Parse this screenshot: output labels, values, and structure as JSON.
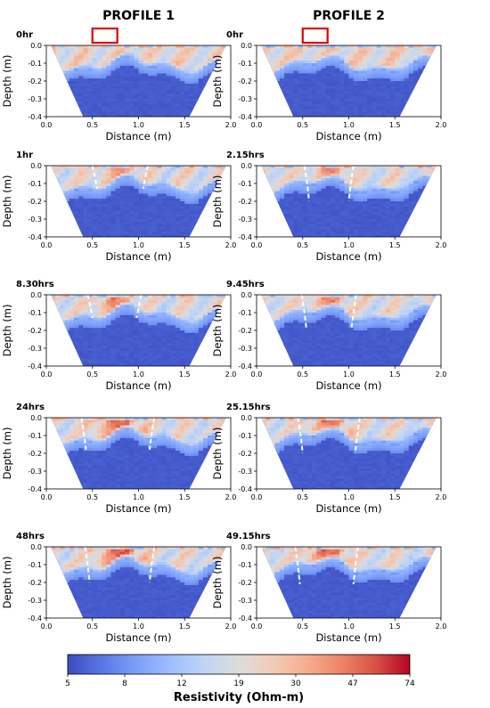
{
  "titles": [
    "PROFILE 1",
    "PROFILE 2"
  ],
  "panels": [
    [
      {
        "time": "0hr",
        "intensity": 0.1,
        "dashes": null,
        "marker": true
      },
      {
        "time": "1hr",
        "intensity": 0.55,
        "dashes": [
          0.55,
          1.05,
          0.13
        ],
        "marker": false
      },
      {
        "time": "8.30hrs",
        "intensity": 0.7,
        "dashes": [
          0.5,
          0.98,
          0.13
        ],
        "marker": false
      },
      {
        "time": "24hrs",
        "intensity": 0.8,
        "dashes": [
          0.43,
          1.12,
          0.18
        ],
        "marker": false
      },
      {
        "time": "48hrs",
        "intensity": 0.88,
        "dashes": [
          0.47,
          1.12,
          0.2
        ],
        "marker": false
      }
    ],
    [
      {
        "time": "0hr",
        "intensity": 0.15,
        "dashes": null,
        "marker": true
      },
      {
        "time": "2.15hrs",
        "intensity": 0.62,
        "dashes": [
          0.57,
          1.0,
          0.2
        ],
        "marker": false
      },
      {
        "time": "9.45hrs",
        "intensity": 0.66,
        "dashes": [
          0.54,
          1.03,
          0.19
        ],
        "marker": false
      },
      {
        "time": "25.15hrs",
        "intensity": 0.76,
        "dashes": [
          0.5,
          1.07,
          0.2
        ],
        "marker": false
      },
      {
        "time": "49.15hrs",
        "intensity": 0.84,
        "dashes": [
          0.47,
          1.05,
          0.21
        ],
        "marker": false
      }
    ]
  ],
  "chart_data": {
    "type": "heatmap",
    "xlabel": "Distance  (m)",
    "ylabel": "Depth (m)",
    "xlim": [
      0.0,
      2.0
    ],
    "ylim": [
      -0.4,
      0.0
    ],
    "xticks": [
      "0.0",
      "0.5",
      "1.0",
      "1.5",
      "2.0"
    ],
    "yticks": [
      "0.0",
      "-0.1",
      "-0.2",
      "-0.3",
      "-0.4"
    ],
    "trapezoid_top": [
      0.05,
      1.95
    ],
    "trapezoid_bottom": [
      0.4,
      1.55
    ],
    "colorbar": {
      "label": "Resistivity (Ohm-m)",
      "ticks": [
        "5",
        "8",
        "12",
        "19",
        "30",
        "47",
        "74"
      ],
      "colors": [
        "#3b4cc0",
        "#5977e3",
        "#7b9ff9",
        "#9ebeff",
        "#c0d4f5",
        "#dddcdc",
        "#f2cbb7",
        "#f7ac8e",
        "#ee8468",
        "#d65244",
        "#b40426"
      ]
    },
    "marker_color": "#e00000",
    "marker_x": [
      0.5,
      0.77
    ]
  }
}
